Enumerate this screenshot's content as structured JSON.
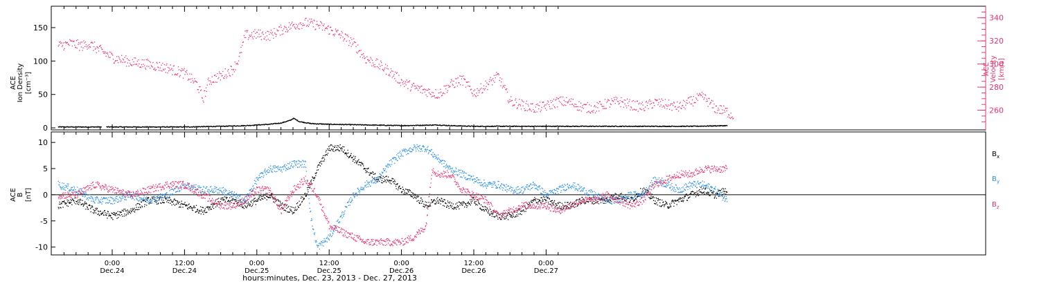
{
  "colors": {
    "black": "#000000",
    "pink": "#e8346c",
    "blue": "#2a8fe8"
  },
  "chart_data": [
    {
      "type": "scatter",
      "panel": "top",
      "ylabel_left": [
        "ACE",
        "Ion Density",
        "[cm⁻³]"
      ],
      "ylabel_right": [
        "ACE",
        "Velocity",
        "[km/s]"
      ],
      "ylim_left": [
        -3,
        182
      ],
      "yticks_left": [
        0,
        50,
        100,
        150
      ],
      "ylim_right": [
        243,
        350
      ],
      "yticks_right": [
        260,
        280,
        300,
        320,
        340
      ],
      "series": [
        {
          "axis": "left",
          "color": "#000000",
          "x": [
            -9,
            -6,
            -2,
            -1.5,
            0,
            6,
            12,
            18,
            22,
            26,
            28,
            29.5,
            30,
            31,
            33,
            36,
            42,
            48,
            54,
            56,
            60,
            66,
            72,
            78,
            84,
            90,
            96,
            102
          ],
          "values": [
            2,
            2,
            2,
            2,
            2,
            2,
            2,
            3,
            4,
            6,
            8,
            12,
            15,
            10,
            7,
            6,
            5,
            4,
            5,
            4,
            3,
            3,
            3,
            3,
            3,
            3,
            3,
            4
          ]
        },
        {
          "axis": "right",
          "color": "#e8346c",
          "x": [
            -9,
            -7,
            -5,
            -4,
            -2,
            0,
            3,
            6,
            9,
            12,
            14,
            15,
            16,
            18,
            20,
            21,
            22,
            24,
            26,
            28,
            30,
            32,
            34,
            36,
            38,
            40,
            42,
            44,
            46,
            48,
            50,
            52,
            54,
            56,
            58,
            60,
            62,
            64,
            66,
            68,
            70,
            72,
            74,
            76,
            78,
            80,
            82,
            84,
            86,
            88,
            90,
            92,
            94,
            96,
            98,
            100,
            102,
            103
          ],
          "values": [
            316,
            318,
            316,
            318,
            312,
            306,
            302,
            300,
            297,
            292,
            283,
            270,
            286,
            290,
            296,
            305,
            325,
            326,
            325,
            330,
            334,
            336,
            334,
            330,
            325,
            318,
            305,
            300,
            294,
            285,
            280,
            277,
            274,
            282,
            287,
            275,
            282,
            290,
            268,
            265,
            262,
            264,
            268,
            267,
            263,
            262,
            266,
            268,
            265,
            263,
            267,
            265,
            263,
            268,
            272,
            262,
            259,
            255
          ]
        }
      ]
    },
    {
      "type": "scatter",
      "panel": "bottom",
      "ylabel_left": [
        "ACE",
        "B",
        "[nT]"
      ],
      "ylim": [
        -11.5,
        12.0
      ],
      "yticks": [
        -10,
        -5,
        0,
        5,
        10
      ],
      "series": [
        {
          "name": "Bx",
          "color": "#000000",
          "x": [
            -9,
            -6,
            -3,
            0,
            3,
            6,
            9,
            12,
            15,
            18,
            20,
            22,
            24,
            26,
            28,
            30,
            32,
            34,
            36,
            38,
            40,
            42,
            44,
            46,
            48,
            50,
            52,
            54,
            56,
            58,
            60,
            62,
            64,
            66,
            68,
            70,
            72,
            74,
            76,
            78,
            80,
            82,
            84,
            86,
            88,
            90,
            92,
            94,
            96,
            98,
            100,
            102
          ],
          "values": [
            -2,
            -1,
            -3,
            -4,
            -3,
            -1,
            -1,
            -2,
            -3,
            -1,
            -1,
            -2,
            -1,
            0,
            -2,
            -3,
            0,
            5,
            9,
            9,
            7,
            5,
            3,
            3,
            1,
            0,
            -2,
            -1,
            -2,
            -2,
            -1,
            -3,
            -4,
            -4,
            -3,
            -1,
            -1,
            -2,
            -2,
            -1,
            -1,
            -1,
            0,
            -1,
            1,
            -1,
            -2,
            -1,
            0,
            1,
            0,
            1
          ]
        },
        {
          "name": "By",
          "color": "#2a8fe8",
          "x": [
            -9,
            -6,
            -3,
            0,
            3,
            6,
            9,
            12,
            15,
            18,
            20,
            22,
            24,
            26,
            28,
            30,
            32,
            33,
            34,
            36,
            38,
            40,
            42,
            44,
            46,
            48,
            50,
            52,
            54,
            56,
            58,
            60,
            62,
            64,
            66,
            68,
            70,
            72,
            74,
            76,
            78,
            80,
            82,
            84,
            86,
            88,
            90,
            92,
            94,
            96,
            98,
            100,
            102
          ],
          "values": [
            2,
            1,
            -1,
            -1,
            0,
            -1,
            0,
            2,
            1,
            1,
            0,
            -1,
            3,
            5,
            5,
            6,
            6,
            -5,
            -10,
            -8,
            -4,
            0,
            2,
            3,
            6,
            8,
            9,
            9,
            7,
            5,
            4,
            3,
            2,
            2,
            1,
            1,
            2,
            0,
            1,
            2,
            1,
            0,
            -1,
            -1,
            0,
            0,
            3,
            2,
            1,
            2,
            2,
            1,
            -1
          ]
        },
        {
          "name": "Bz",
          "color": "#e8346c",
          "x": [
            -9,
            -6,
            -3,
            0,
            3,
            6,
            9,
            12,
            15,
            18,
            20,
            22,
            24,
            26,
            28,
            30,
            32,
            34,
            36,
            38,
            40,
            42,
            44,
            46,
            48,
            50,
            52,
            53,
            54,
            56,
            58,
            60,
            62,
            64,
            66,
            68,
            70,
            72,
            74,
            76,
            78,
            80,
            82,
            84,
            86,
            88,
            90,
            92,
            94,
            96,
            98,
            100,
            102
          ],
          "values": [
            0,
            0,
            2,
            1,
            0,
            1,
            2,
            2,
            0,
            -2,
            -2,
            -1,
            1,
            1,
            -3,
            1,
            3,
            0,
            -6,
            -7,
            -8,
            -9,
            -9,
            -9,
            -9,
            -8,
            -6,
            5,
            4,
            4,
            1,
            0,
            -1,
            -4,
            -3,
            -2,
            -2,
            -2,
            -3,
            -2,
            -1,
            -1,
            0,
            -1,
            -2,
            -1,
            2,
            3,
            4,
            4,
            5,
            5,
            5
          ]
        }
      ],
      "legend": [
        "Bₓ",
        "Bᵧ",
        "Bₓz"
      ]
    }
  ],
  "axis": {
    "xlim": [
      -10,
      120
    ],
    "x_ticks": [
      {
        "x": 0,
        "time": "0:00",
        "date": "Dec.24"
      },
      {
        "x": 12,
        "time": "12:00",
        "date": "Dec.24"
      },
      {
        "x": 24,
        "time": "0:00",
        "date": "Dec.25"
      },
      {
        "x": 36,
        "time": "12:00",
        "date": "Dec.25"
      },
      {
        "x": 48,
        "time": "0:00",
        "date": "Dec.26"
      },
      {
        "x": 60,
        "time": "12:00",
        "date": "Dec.26"
      },
      {
        "x": 72,
        "time": "0:00",
        "date": "Dec.27"
      }
    ],
    "xlabel": "hours:minutes, Dec. 23, 2013 - Dec. 27, 2013"
  },
  "legend_bottom": {
    "bx_main": "B",
    "bx_sub": "x",
    "by_main": "B",
    "by_sub": "y",
    "bz_main": "B",
    "bz_sub": "z"
  }
}
